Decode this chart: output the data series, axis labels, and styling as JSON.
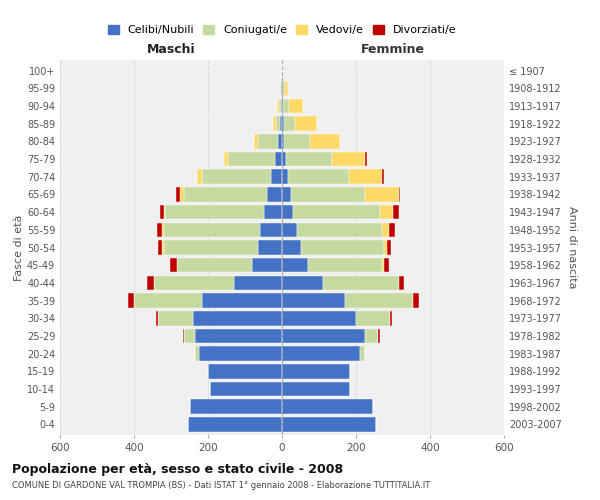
{
  "age_groups": [
    "0-4",
    "5-9",
    "10-14",
    "15-19",
    "20-24",
    "25-29",
    "30-34",
    "35-39",
    "40-44",
    "45-49",
    "50-54",
    "55-59",
    "60-64",
    "65-69",
    "70-74",
    "75-79",
    "80-84",
    "85-89",
    "90-94",
    "95-99",
    "100+"
  ],
  "birth_years": [
    "2003-2007",
    "1998-2002",
    "1993-1997",
    "1988-1992",
    "1983-1987",
    "1978-1982",
    "1973-1977",
    "1968-1972",
    "1963-1967",
    "1958-1962",
    "1953-1957",
    "1948-1952",
    "1943-1947",
    "1938-1942",
    "1933-1937",
    "1928-1932",
    "1923-1927",
    "1918-1922",
    "1913-1917",
    "1908-1912",
    "≤ 1907"
  ],
  "males": {
    "celibi": [
      255,
      250,
      195,
      200,
      225,
      235,
      240,
      215,
      130,
      80,
      65,
      60,
      50,
      40,
      30,
      20,
      10,
      5,
      3,
      2,
      0
    ],
    "coniugati": [
      0,
      0,
      0,
      0,
      10,
      30,
      95,
      185,
      215,
      205,
      255,
      260,
      265,
      225,
      185,
      125,
      55,
      10,
      5,
      2,
      0
    ],
    "vedovi": [
      0,
      0,
      0,
      0,
      0,
      0,
      0,
      0,
      0,
      0,
      5,
      5,
      5,
      10,
      15,
      12,
      12,
      10,
      5,
      2,
      0
    ],
    "divorziati": [
      0,
      0,
      0,
      0,
      0,
      2,
      5,
      15,
      20,
      18,
      10,
      12,
      10,
      12,
      0,
      0,
      0,
      0,
      0,
      0,
      0
    ]
  },
  "females": {
    "nubili": [
      255,
      245,
      185,
      185,
      210,
      225,
      200,
      170,
      110,
      70,
      50,
      40,
      30,
      25,
      15,
      10,
      5,
      5,
      3,
      2,
      0
    ],
    "coniugate": [
      0,
      0,
      0,
      0,
      15,
      35,
      92,
      185,
      205,
      200,
      225,
      230,
      235,
      200,
      165,
      125,
      72,
      30,
      15,
      5,
      0
    ],
    "vedove": [
      0,
      0,
      0,
      0,
      0,
      0,
      0,
      0,
      0,
      5,
      10,
      20,
      35,
      90,
      90,
      90,
      80,
      60,
      40,
      10,
      0
    ],
    "divorziate": [
      0,
      0,
      0,
      0,
      0,
      5,
      5,
      15,
      15,
      15,
      10,
      15,
      15,
      5,
      5,
      5,
      0,
      0,
      0,
      0,
      0
    ]
  },
  "colors": {
    "celibi": "#4472C4",
    "coniugati": "#c5d9a0",
    "vedovi": "#FFD966",
    "divorziati": "#C00000"
  },
  "legend_labels": [
    "Celibi/Nubili",
    "Coniugati/e",
    "Vedovi/e",
    "Divorziati/e"
  ],
  "title": "Popolazione per età, sesso e stato civile - 2008",
  "subtitle": "COMUNE DI GARDONE VAL TROMPIA (BS) - Dati ISTAT 1° gennaio 2008 - Elaborazione TUTTITALIA.IT",
  "xlabel_left": "Maschi",
  "xlabel_right": "Femmine",
  "ylabel_left": "Fasce di età",
  "ylabel_right": "Anni di nascita",
  "xlim": 600,
  "bg_color": "#ffffff",
  "plot_bg_color": "#f0f0f0",
  "grid_color": "#cccccc"
}
